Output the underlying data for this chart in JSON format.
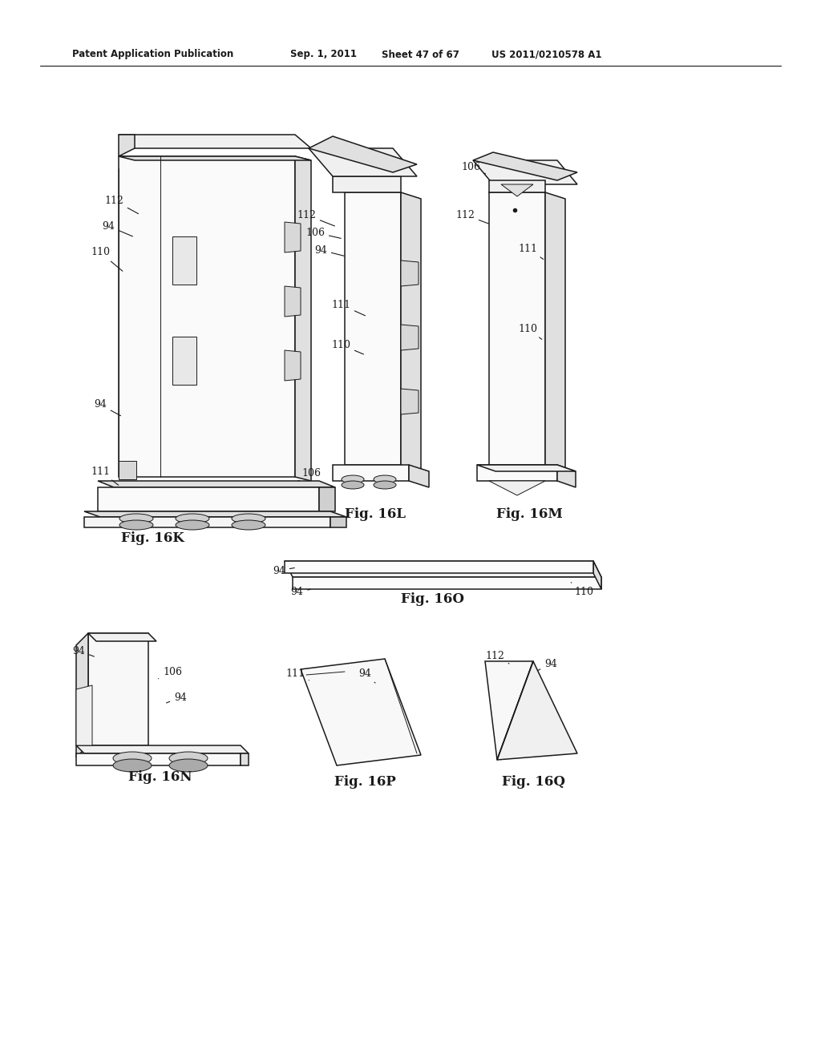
{
  "bg_color": "#ffffff",
  "header_text": "Patent Application Publication",
  "header_date": "Sep. 1, 2011",
  "header_sheet": "Sheet 47 of 67",
  "header_patent": "US 2011/0210578 A1",
  "line_color": "#1a1a1a",
  "fill_light": "#f0f0f0",
  "fill_mid": "#e0e0e0",
  "fill_dark": "#d0d0d0"
}
